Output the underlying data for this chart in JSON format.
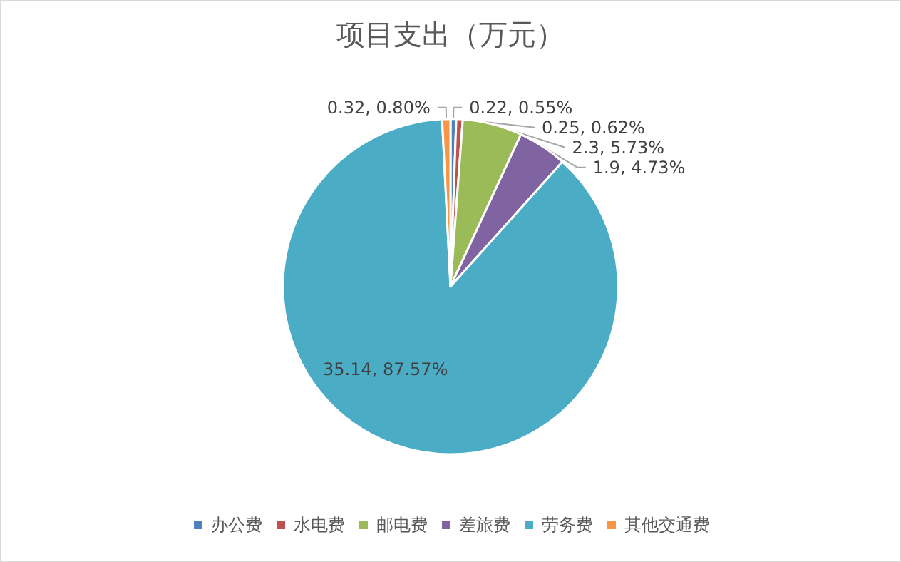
{
  "chart_data": {
    "type": "pie",
    "title": "项目支出（万元）",
    "categories": [
      "办公费",
      "水电费",
      "邮电费",
      "差旅费",
      "劳务费",
      "其他交通费"
    ],
    "values": [
      0.22,
      0.25,
      2.3,
      1.9,
      35.14,
      0.32
    ],
    "colors": [
      "#4f81bd",
      "#c0504d",
      "#9bbb59",
      "#8064a2",
      "#4bacc6",
      "#f79646"
    ],
    "value_labels": [
      "0.22, 0.55%",
      "0.25, 0.62%",
      "2.3, 5.73%",
      "1.9, 4.73%",
      "35.14, 87.57%",
      "0.32, 0.80%"
    ],
    "legend": "bottom"
  }
}
